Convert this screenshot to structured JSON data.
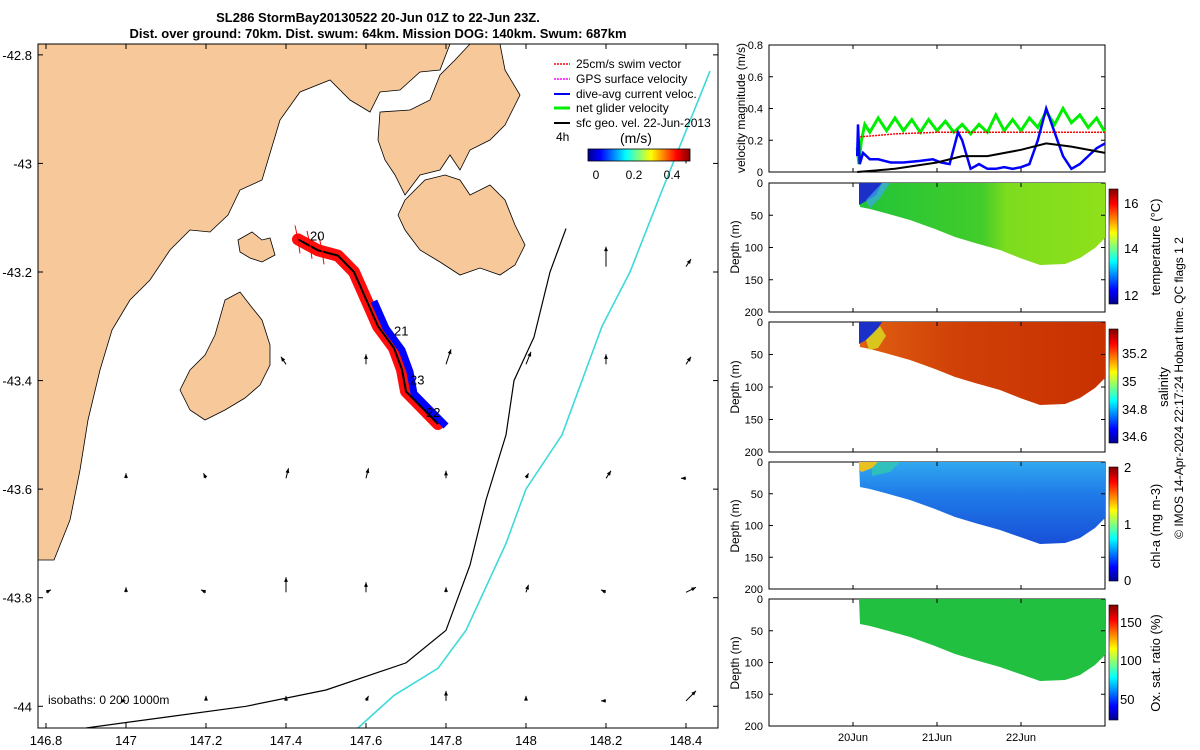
{
  "header": {
    "title_line1": "SL286 StormBay20130522 20-Jun 01Z to 22-Jun 23Z.",
    "title_line2": "Dist. over ground: 70km. Dist. swum: 64km. Mission DOG: 140km. Swum: 687km"
  },
  "colors": {
    "land": "#f6c89a",
    "sea": "#ffffff",
    "isobath_200": "#000000",
    "isobath_1000": "#3fd9d9"
  },
  "chart_data": [
    {
      "type": "map",
      "id": "glider-track-map",
      "xlim": [
        146.78,
        148.48
      ],
      "ylim": [
        -44.04,
        -42.78
      ],
      "x_ticks": [
        146.8,
        147,
        147.2,
        147.4,
        147.6,
        147.8,
        148,
        148.2,
        148.4
      ],
      "x_tick_labels": [
        "146.8",
        "147",
        "147.2",
        "147.4",
        "147.6",
        "147.8",
        "148",
        "148.2",
        "148.4"
      ],
      "y_ticks": [
        -42.8,
        -43,
        -43.2,
        -43.4,
        -43.6,
        -43.8,
        -44
      ],
      "y_tick_labels": [
        "-42.8",
        "-43",
        "-43.2",
        "-43.4",
        "-43.6",
        "-43.8",
        "-44"
      ],
      "legend": {
        "items": [
          "25cm/s swim vector",
          "GPS surface velocity",
          "dive-avg current veloc.",
          "net glider velocity",
          "sfc geo. vel. 22-Jun-2013"
        ],
        "item_colors": [
          "#ff0000",
          "#ff00ff",
          "#0000ff",
          "#00ee00",
          "#000000"
        ],
        "time_label": "4h"
      },
      "colorbar": {
        "label": "(m/s)",
        "ticks": [
          "0",
          "0.2",
          "0.4"
        ],
        "range": [
          0,
          0.5
        ]
      },
      "isobath_label": "isobaths: 0   200  1000m",
      "track": [
        [
          147.43,
          -43.14
        ],
        [
          147.48,
          -43.16
        ],
        [
          147.53,
          -43.17
        ],
        [
          147.57,
          -43.2
        ],
        [
          147.6,
          -43.25
        ],
        [
          147.63,
          -43.3
        ],
        [
          147.67,
          -43.34
        ],
        [
          147.69,
          -43.38
        ],
        [
          147.7,
          -43.42
        ],
        [
          147.74,
          -43.45
        ],
        [
          147.78,
          -43.48
        ]
      ],
      "day_labels": [
        {
          "text": "20",
          "lon": 147.45,
          "lat": -43.135
        },
        {
          "text": "21",
          "lon": 147.66,
          "lat": -43.31
        },
        {
          "text": "23",
          "lon": 147.7,
          "lat": -43.4
        },
        {
          "text": "22",
          "lon": 147.74,
          "lat": -43.46
        }
      ],
      "isobath_200": [
        [
          148.1,
          -43.12
        ],
        [
          148.06,
          -43.2
        ],
        [
          148.02,
          -43.32
        ],
        [
          147.97,
          -43.4
        ],
        [
          147.95,
          -43.5
        ],
        [
          147.9,
          -43.62
        ],
        [
          147.86,
          -43.74
        ],
        [
          147.8,
          -43.86
        ],
        [
          147.7,
          -43.92
        ],
        [
          147.5,
          -43.97
        ],
        [
          147.3,
          -44.0
        ],
        [
          147.1,
          -44.02
        ],
        [
          146.9,
          -44.04
        ]
      ],
      "isobath_1000": [
        [
          148.46,
          -42.83
        ],
        [
          148.34,
          -43.05
        ],
        [
          148.26,
          -43.2
        ],
        [
          148.19,
          -43.3
        ],
        [
          148.14,
          -43.4
        ],
        [
          148.09,
          -43.5
        ],
        [
          148.0,
          -43.6
        ],
        [
          147.95,
          -43.7
        ],
        [
          147.9,
          -43.78
        ],
        [
          147.85,
          -43.86
        ],
        [
          147.78,
          -43.93
        ],
        [
          147.67,
          -43.98
        ],
        [
          147.58,
          -44.04
        ]
      ],
      "current_arrows": [
        [
          147.4,
          -43.37,
          -0.02,
          0.03
        ],
        [
          147.6,
          -43.37,
          0.0,
          0.04
        ],
        [
          147.8,
          -43.37,
          0.02,
          0.06
        ],
        [
          148.0,
          -43.37,
          0.02,
          0.05
        ],
        [
          148.2,
          -43.37,
          0.0,
          0.04
        ],
        [
          148.4,
          -43.37,
          0.02,
          0.03
        ],
        [
          148.2,
          -43.19,
          0.0,
          0.08
        ],
        [
          148.4,
          -43.19,
          0.02,
          0.03
        ],
        [
          148.4,
          -43.0,
          0.0,
          0.03
        ],
        [
          147.0,
          -43.58,
          0.0,
          0.02
        ],
        [
          147.2,
          -43.58,
          -0.01,
          0.02
        ],
        [
          147.4,
          -43.58,
          0.01,
          0.04
        ],
        [
          147.6,
          -43.58,
          0.01,
          0.04
        ],
        [
          147.8,
          -43.58,
          0.0,
          0.03
        ],
        [
          148.0,
          -43.58,
          0.01,
          0.02
        ],
        [
          148.2,
          -43.58,
          0.02,
          0.03
        ],
        [
          148.4,
          -43.58,
          -0.02,
          0.0
        ],
        [
          146.8,
          -43.79,
          0.02,
          0.01
        ],
        [
          147.0,
          -43.79,
          0.0,
          0.02
        ],
        [
          147.2,
          -43.79,
          -0.02,
          0.01
        ],
        [
          147.4,
          -43.79,
          0.0,
          0.06
        ],
        [
          147.6,
          -43.79,
          0.0,
          0.04
        ],
        [
          147.8,
          -43.79,
          0.0,
          0.02
        ],
        [
          148.0,
          -43.79,
          0.01,
          0.03
        ],
        [
          148.2,
          -43.79,
          -0.02,
          0.01
        ],
        [
          148.4,
          -43.79,
          0.04,
          0.02
        ],
        [
          147.0,
          -43.99,
          0.0,
          0.0
        ],
        [
          147.2,
          -43.99,
          0.0,
          0.02
        ],
        [
          147.4,
          -43.99,
          0.0,
          0.02
        ],
        [
          147.6,
          -43.99,
          0.01,
          0.02
        ],
        [
          147.8,
          -43.99,
          0.0,
          0.04
        ],
        [
          148.0,
          -43.99,
          0.0,
          0.02
        ],
        [
          148.2,
          -43.99,
          -0.02,
          0.0
        ],
        [
          148.4,
          -43.99,
          0.04,
          0.04
        ]
      ]
    },
    {
      "type": "line",
      "id": "velocity-magnitude",
      "ylabel": "velocity magnitude (m/s)",
      "ylim": [
        0,
        0.8
      ],
      "y_ticks": [
        0,
        0.2,
        0.4,
        0.6,
        0.8
      ],
      "y_tick_labels": [
        "0",
        "0.2",
        "0.4",
        "0.6",
        "0.8"
      ],
      "xlim": [
        19.0,
        23.0
      ],
      "series": [
        {
          "name": "net glider velocity",
          "color": "#00ee00",
          "x": [
            20.05,
            20.07,
            20.1,
            20.14,
            20.2,
            20.3,
            20.4,
            20.5,
            20.6,
            20.7,
            20.8,
            20.9,
            21.0,
            21.1,
            21.2,
            21.3,
            21.4,
            21.5,
            21.6,
            21.7,
            21.8,
            21.9,
            22.0,
            22.1,
            22.2,
            22.3,
            22.4,
            22.5,
            22.6,
            22.7,
            22.8,
            22.9,
            23.0
          ],
          "values": [
            0.15,
            0.05,
            0.2,
            0.3,
            0.25,
            0.34,
            0.26,
            0.34,
            0.26,
            0.33,
            0.25,
            0.33,
            0.26,
            0.32,
            0.25,
            0.3,
            0.24,
            0.3,
            0.25,
            0.36,
            0.26,
            0.33,
            0.26,
            0.34,
            0.28,
            0.38,
            0.3,
            0.4,
            0.31,
            0.36,
            0.28,
            0.34,
            0.25
          ]
        },
        {
          "name": "25cm/s swim vector",
          "color": "#ff0000",
          "x": [
            20.05,
            20.5,
            21.0,
            21.5,
            22.0,
            22.5,
            23.0
          ],
          "values": [
            0.22,
            0.24,
            0.25,
            0.25,
            0.25,
            0.25,
            0.25
          ]
        },
        {
          "name": "dive-avg current veloc.",
          "color": "#0000ff",
          "x": [
            20.05,
            20.06,
            20.08,
            20.12,
            20.2,
            20.3,
            20.45,
            20.6,
            20.8,
            20.95,
            21.05,
            21.15,
            21.25,
            21.3,
            21.4,
            21.5,
            21.6,
            21.7,
            21.8,
            21.9,
            22.0,
            22.1,
            22.2,
            22.3,
            22.4,
            22.5,
            22.6,
            22.7,
            22.8,
            22.9,
            23.0
          ],
          "values": [
            0.1,
            0.3,
            0.05,
            0.12,
            0.08,
            0.08,
            0.06,
            0.06,
            0.07,
            0.08,
            0.06,
            0.05,
            0.25,
            0.2,
            0.02,
            0.05,
            0.02,
            0.02,
            0.03,
            0.02,
            0.03,
            0.05,
            0.2,
            0.4,
            0.25,
            0.1,
            0.02,
            0.05,
            0.1,
            0.15,
            0.18
          ]
        },
        {
          "name": "sfc geo. vel.",
          "color": "#000000",
          "x": [
            20.05,
            20.5,
            21.0,
            21.3,
            21.6,
            22.0,
            22.3,
            22.6,
            23.0
          ],
          "values": [
            0.0,
            0.02,
            0.06,
            0.1,
            0.1,
            0.14,
            0.18,
            0.16,
            0.12
          ]
        }
      ]
    },
    {
      "type": "heatmap",
      "id": "temperature-section",
      "ylabel": "Depth (m)",
      "ylim": [
        200,
        0
      ],
      "y_ticks": [
        "0",
        "50",
        "100",
        "150",
        "200"
      ],
      "colorbar_label": "temperature (°C)",
      "colorbar_ticks": [
        "12",
        "14",
        "16"
      ],
      "clim": [
        11.5,
        16.8
      ]
    },
    {
      "type": "heatmap",
      "id": "salinity-section",
      "ylabel": "Depth (m)",
      "ylim": [
        200,
        0
      ],
      "y_ticks": [
        "0",
        "50",
        "100",
        "150",
        "200"
      ],
      "colorbar_label": "salinity",
      "colorbar_ticks": [
        "34.6",
        "34.8",
        "35",
        "35.2"
      ],
      "clim": [
        34.5,
        35.3
      ]
    },
    {
      "type": "heatmap",
      "id": "chla-section",
      "ylabel": "Depth (m)",
      "ylim": [
        200,
        0
      ],
      "y_ticks": [
        "0",
        "50",
        "100",
        "150",
        "200"
      ],
      "colorbar_label": "chl-a (mg m-3)",
      "colorbar_ticks": [
        "0",
        "1",
        "2"
      ],
      "clim": [
        0,
        2
      ]
    },
    {
      "type": "heatmap",
      "id": "oxygen-section",
      "ylabel": "Depth (m)",
      "ylim": [
        200,
        0
      ],
      "y_ticks": [
        "0",
        "50",
        "100",
        "150",
        "200"
      ],
      "colorbar_label": "Ox. sat. ratio (%)",
      "colorbar_ticks": [
        "50",
        "100",
        "150"
      ],
      "clim": [
        20,
        175
      ]
    }
  ],
  "time_axis": {
    "ticks": [
      20.0,
      21.0,
      22.0
    ],
    "labels": [
      "20Jun",
      "21Jun",
      "22Jun"
    ]
  },
  "footer": {
    "credit": "© IMOS 14-Apr-2024 22:17:24 Hobart time. QC flags 1  2"
  }
}
